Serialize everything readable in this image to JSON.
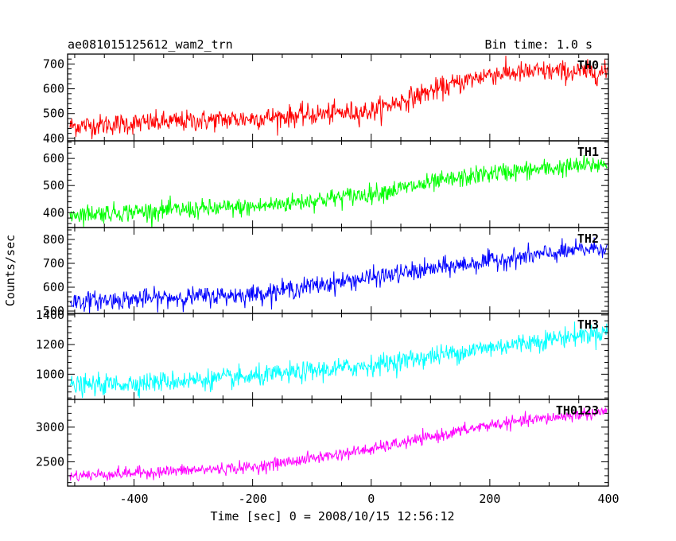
{
  "header": {
    "title": "ae081015125612_wam2_trn",
    "bin_time": "Bin time: 1.0 s"
  },
  "chart_data": {
    "type": "line",
    "xlabel": "Time [sec] 0 = 2008/10/15 12:56:12",
    "ylabel": "Counts/sec",
    "xlim": [
      -512,
      400
    ],
    "xticks": [
      -400,
      -200,
      0,
      200,
      400
    ],
    "grid": false,
    "panels": [
      {
        "label": "TH0",
        "color": "#ff0000",
        "ylim": [
          390,
          740
        ],
        "yticks": [
          400,
          500,
          600,
          700
        ],
        "trend": {
          "x": [
            -500,
            -200,
            0,
            100,
            200,
            300,
            400
          ],
          "y": [
            450,
            480,
            510,
            590,
            660,
            670,
            665
          ]
        },
        "noise": 35
      },
      {
        "label": "TH1",
        "color": "#00ff00",
        "ylim": [
          345,
          665
        ],
        "yticks": [
          400,
          500,
          600
        ],
        "trend": {
          "x": [
            -500,
            -200,
            0,
            200,
            400
          ],
          "y": [
            395,
            420,
            470,
            545,
            580
          ]
        },
        "noise": 28
      },
      {
        "label": "TH2",
        "color": "#0000ff",
        "ylim": [
          490,
          850
        ],
        "yticks": [
          500,
          600,
          700,
          800
        ],
        "trend": {
          "x": [
            -500,
            -200,
            0,
            200,
            400
          ],
          "y": [
            540,
            570,
            640,
            710,
            770
          ]
        },
        "noise": 32
      },
      {
        "label": "TH3",
        "color": "#00ffff",
        "ylim": [
          830,
          1410
        ],
        "yticks": [
          1000,
          1200,
          1400
        ],
        "trend": {
          "x": [
            -500,
            -200,
            0,
            200,
            400
          ],
          "y": [
            920,
            980,
            1060,
            1180,
            1290
          ]
        },
        "noise": 55
      },
      {
        "label": "TH0123",
        "color": "#ff00ff",
        "ylim": [
          2150,
          3400
        ],
        "yticks": [
          2500,
          3000
        ],
        "trend": {
          "x": [
            -500,
            -200,
            0,
            200,
            400
          ],
          "y": [
            2300,
            2420,
            2680,
            3030,
            3230
          ]
        },
        "noise": 70
      }
    ]
  }
}
